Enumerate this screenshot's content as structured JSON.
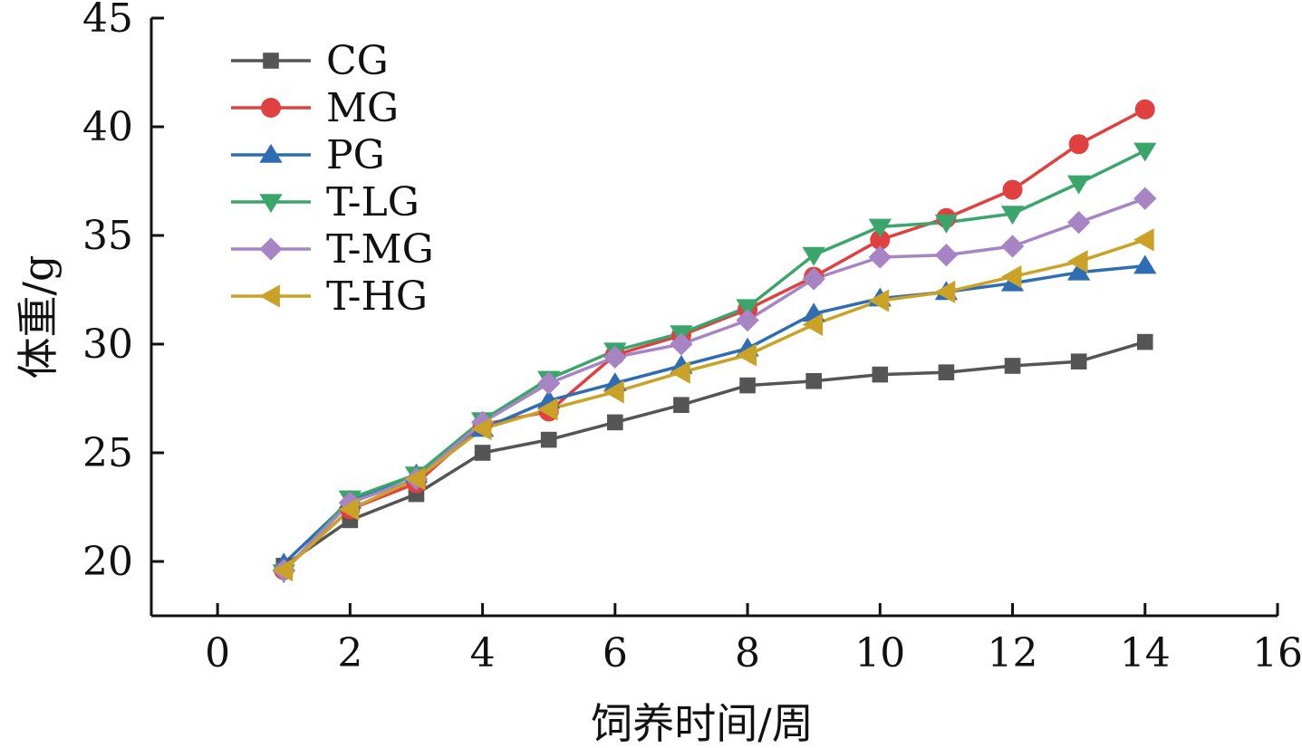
{
  "chart_data": {
    "type": "line",
    "title": "",
    "xlabel": "饲养时间/周",
    "ylabel": "体重/g",
    "xlim": [
      -1,
      16
    ],
    "ylim": [
      17.5,
      45
    ],
    "xticks": [
      0,
      2,
      4,
      6,
      8,
      10,
      12,
      14,
      16
    ],
    "yticks": [
      20,
      25,
      30,
      35,
      40,
      45
    ],
    "x_tick_labels": [
      "0",
      "2",
      "4",
      "6",
      "8",
      "10",
      "12",
      "14",
      "16"
    ],
    "y_tick_labels": [
      "20",
      "25",
      "30",
      "35",
      "40",
      "45"
    ],
    "legend_position": "top-left",
    "x": [
      1,
      2,
      3,
      4,
      5,
      6,
      7,
      8,
      9,
      10,
      11,
      12,
      13,
      14
    ],
    "series": [
      {
        "name": "CG",
        "color": "#555555",
        "marker": "square",
        "values": [
          19.8,
          21.9,
          23.1,
          25.0,
          25.6,
          26.4,
          27.2,
          28.1,
          28.3,
          28.6,
          28.7,
          29.0,
          29.2,
          30.1
        ]
      },
      {
        "name": "MG",
        "color": "#e0403f",
        "marker": "circle",
        "values": [
          19.6,
          22.4,
          23.6,
          26.3,
          26.9,
          29.5,
          30.4,
          31.6,
          33.1,
          34.8,
          35.8,
          37.1,
          39.2,
          40.8
        ]
      },
      {
        "name": "PG",
        "color": "#2e6db4",
        "marker": "triangle-up",
        "values": [
          19.9,
          22.8,
          24.0,
          26.1,
          27.4,
          28.2,
          29.0,
          29.8,
          31.4,
          32.1,
          32.4,
          32.8,
          33.3,
          33.6
        ]
      },
      {
        "name": "T-LG",
        "color": "#3aa66b",
        "marker": "triangle-down",
        "values": [
          19.5,
          22.9,
          24.0,
          26.5,
          28.4,
          29.7,
          30.5,
          31.7,
          34.1,
          35.4,
          35.6,
          36.0,
          37.4,
          38.9
        ]
      },
      {
        "name": "T-MG",
        "color": "#a784c4",
        "marker": "diamond",
        "values": [
          19.6,
          22.7,
          23.8,
          26.4,
          28.2,
          29.4,
          30.0,
          31.1,
          33.0,
          34.0,
          34.1,
          34.5,
          35.6,
          36.7
        ]
      },
      {
        "name": "T-HG",
        "color": "#c9a227",
        "marker": "triangle-left",
        "values": [
          19.6,
          22.4,
          23.8,
          26.1,
          27.0,
          27.8,
          28.7,
          29.5,
          30.9,
          32.0,
          32.4,
          33.1,
          33.8,
          34.8
        ]
      }
    ]
  }
}
